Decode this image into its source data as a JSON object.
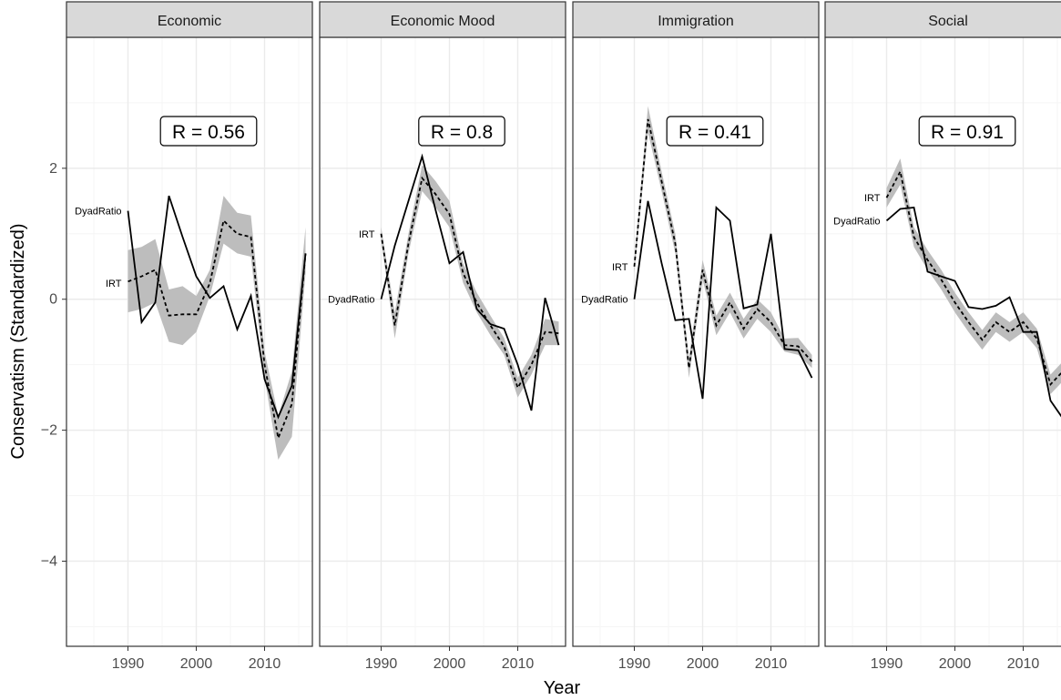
{
  "chart_data": {
    "type": "line",
    "xlabel": "Year",
    "ylabel": "Conservatism (Standardized)",
    "xlim": [
      1981,
      2017
    ],
    "ylim": [
      -5.3,
      4.0
    ],
    "x_ticks": [
      1990,
      2000,
      2010
    ],
    "y_ticks": [
      -4,
      -2,
      0,
      2
    ],
    "grid": true,
    "legend": "none",
    "colors": {
      "line": "#000000",
      "ribbon": "#bdbdbd",
      "strip_fill": "#d9d9d9",
      "grid_major": "#ebebeb",
      "grid_minor": "#f5f5f5"
    },
    "panels": [
      {
        "title": "Economic",
        "annotation": "R = 0.56",
        "solid_label": "DyadRatio",
        "dashed_label": "IRT",
        "solid_label_at": [
          1990,
          1.35
        ],
        "dashed_label_at": [
          1990,
          0.25
        ],
        "solid": {
          "x": [
            1990,
            1992,
            1994,
            1996,
            1998,
            2000,
            2002,
            2004,
            2006,
            2008,
            2010,
            2012,
            2014,
            2016
          ],
          "y": [
            1.35,
            -0.35,
            -0.05,
            1.58,
            0.95,
            0.35,
            0.02,
            0.2,
            -0.46,
            0.05,
            -1.22,
            -1.8,
            -1.32,
            0.7
          ]
        },
        "dashed": {
          "x": [
            1990,
            1992,
            1994,
            1996,
            1998,
            2000,
            2002,
            2004,
            2006,
            2008,
            2010,
            2012,
            2014,
            2016
          ],
          "y": [
            0.27,
            0.35,
            0.45,
            -0.25,
            -0.23,
            -0.23,
            0.25,
            1.2,
            1.0,
            0.95,
            -1.0,
            -2.12,
            -1.6,
            0.7
          ],
          "lower": [
            -0.2,
            -0.15,
            -0.05,
            -0.65,
            -0.7,
            -0.5,
            0.05,
            0.85,
            0.7,
            0.65,
            -1.2,
            -2.45,
            -2.1,
            0.4
          ],
          "upper": [
            0.75,
            0.8,
            0.92,
            0.15,
            0.2,
            0.05,
            0.45,
            1.58,
            1.32,
            1.28,
            -0.8,
            -1.78,
            -1.1,
            1.1
          ]
        }
      },
      {
        "title": "Economic Mood",
        "annotation": "R = 0.8",
        "solid_label": "DyadRatio",
        "dashed_label": "IRT",
        "solid_label_at": [
          1990,
          0.0
        ],
        "dashed_label_at": [
          1990,
          1.0
        ],
        "solid": {
          "x": [
            1990,
            1992,
            1994,
            1996,
            1998,
            2000,
            2002,
            2004,
            2006,
            2008,
            2010,
            2012,
            2014,
            2016
          ],
          "y": [
            0.0,
            0.82,
            1.5,
            2.18,
            1.35,
            0.55,
            0.72,
            -0.15,
            -0.38,
            -0.45,
            -1.0,
            -1.7,
            0.02,
            -0.7
          ]
        },
        "dashed": {
          "x": [
            1990,
            1992,
            1994,
            1996,
            1998,
            2000,
            2002,
            2004,
            2006,
            2008,
            2010,
            2012,
            2014,
            2016
          ],
          "y": [
            1.0,
            -0.4,
            0.85,
            1.85,
            1.6,
            1.3,
            0.4,
            -0.05,
            -0.4,
            -0.72,
            -1.35,
            -1.0,
            -0.5,
            -0.52
          ],
          "lower": [
            0.9,
            -0.6,
            0.7,
            1.65,
            1.4,
            1.1,
            0.25,
            -0.2,
            -0.55,
            -0.85,
            -1.5,
            -1.15,
            -0.7,
            -0.7
          ],
          "upper": [
            1.1,
            -0.2,
            1.0,
            2.05,
            1.8,
            1.5,
            0.55,
            0.1,
            -0.25,
            -0.59,
            -1.2,
            -0.85,
            -0.3,
            -0.34
          ]
        }
      },
      {
        "title": "Immigration",
        "annotation": "R = 0.41",
        "solid_label": "DyadRatio",
        "dashed_label": "IRT",
        "solid_label_at": [
          1990,
          0.0
        ],
        "dashed_label_at": [
          1990,
          0.5
        ],
        "solid": {
          "x": [
            1990,
            1992,
            1994,
            1996,
            1998,
            2000,
            2002,
            2004,
            2006,
            2008,
            2010,
            2012,
            2014,
            2016
          ],
          "y": [
            0.0,
            1.5,
            0.55,
            -0.32,
            -0.3,
            -1.52,
            1.4,
            1.2,
            -0.14,
            -0.08,
            1.0,
            -0.76,
            -0.78,
            -1.2
          ]
        },
        "dashed": {
          "x": [
            1990,
            1992,
            1994,
            1996,
            1998,
            2000,
            2002,
            2004,
            2006,
            2008,
            2010,
            2012,
            2014,
            2016
          ],
          "y": [
            0.5,
            2.75,
            1.8,
            0.85,
            -1.05,
            0.45,
            -0.4,
            -0.05,
            -0.45,
            -0.15,
            -0.35,
            -0.7,
            -0.72,
            -0.95
          ],
          "lower": [
            0.4,
            2.55,
            1.65,
            0.7,
            -1.2,
            0.3,
            -0.55,
            -0.2,
            -0.6,
            -0.3,
            -0.5,
            -0.8,
            -0.85,
            -1.05
          ],
          "upper": [
            0.6,
            2.95,
            1.95,
            1.0,
            -0.9,
            0.6,
            -0.25,
            0.1,
            -0.3,
            0.0,
            -0.2,
            -0.6,
            -0.59,
            -0.85
          ]
        }
      },
      {
        "title": "Social",
        "annotation": "R = 0.91",
        "solid_label": "DyadRatio",
        "dashed_label": "IRT",
        "solid_label_at": [
          1990,
          1.2
        ],
        "dashed_label_at": [
          1990,
          1.55
        ],
        "solid": {
          "x": [
            1990,
            1992,
            1994,
            1996,
            1998,
            2000,
            2002,
            2004,
            2006,
            2008,
            2010,
            2012,
            2014,
            2016
          ],
          "y": [
            1.2,
            1.38,
            1.4,
            0.42,
            0.35,
            0.28,
            -0.12,
            -0.15,
            -0.1,
            0.03,
            -0.5,
            -0.5,
            -1.55,
            -1.85
          ]
        },
        "dashed": {
          "x": [
            1990,
            1992,
            1994,
            1996,
            1998,
            2000,
            2002,
            2004,
            2006,
            2008,
            2010,
            2012,
            2014,
            2016
          ],
          "y": [
            1.55,
            1.95,
            0.95,
            0.6,
            0.3,
            -0.05,
            -0.35,
            -0.62,
            -0.35,
            -0.5,
            -0.35,
            -0.6,
            -1.3,
            -1.08
          ],
          "lower": [
            1.4,
            1.75,
            0.8,
            0.45,
            0.15,
            -0.2,
            -0.5,
            -0.77,
            -0.5,
            -0.65,
            -0.5,
            -0.75,
            -1.45,
            -1.23
          ],
          "upper": [
            1.7,
            2.15,
            1.1,
            0.75,
            0.45,
            0.1,
            -0.2,
            -0.47,
            -0.2,
            -0.35,
            -0.2,
            -0.45,
            -1.15,
            -0.93
          ]
        }
      }
    ]
  }
}
